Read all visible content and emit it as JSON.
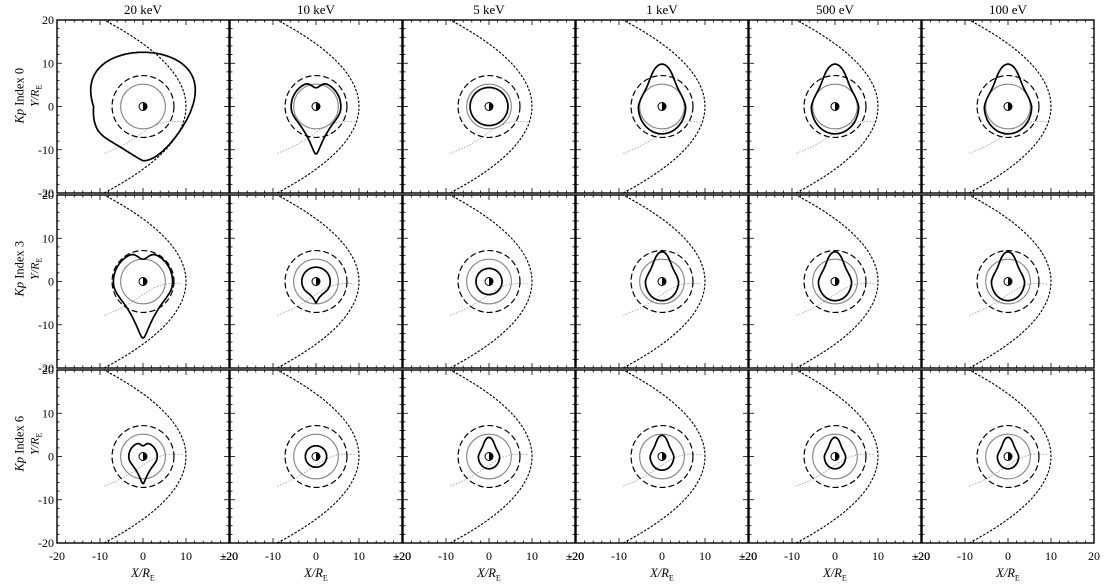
{
  "figure": {
    "columns": [
      "20 keV",
      "10 keV",
      "5 keV",
      "1 keV",
      "500 eV",
      "100 eV"
    ],
    "rows": [
      {
        "kp_prefix": "Kp",
        "kp_text": "Index 0"
      },
      {
        "kp_prefix": "Kp",
        "kp_text": "Index 3"
      },
      {
        "kp_prefix": "Kp",
        "kp_text": "Index 6"
      }
    ],
    "y_axis_label": {
      "var": "Y/R",
      "sub": "E"
    },
    "x_axis_label": {
      "var": "X/R",
      "sub": "E"
    },
    "y_ticks": [
      "20",
      "10",
      "0",
      "-10",
      "-20"
    ],
    "x_ticks_inner": [
      "-20",
      "-10",
      "0",
      "10",
      "±20"
    ],
    "x_ticks_last": [
      "-20",
      "-10",
      "0",
      "10",
      "20"
    ]
  },
  "chart_data": {
    "type": "diagram",
    "description_units": "Earth radii",
    "xlim": [
      -20,
      20
    ],
    "ylim": [
      -20,
      20
    ],
    "panels": [
      {
        "row": 0,
        "col": 0,
        "curve": "teardrop-wide",
        "scale": 1.9
      },
      {
        "row": 0,
        "col": 1,
        "curve": "teardrop-notched",
        "scale": 1.05
      },
      {
        "row": 0,
        "col": 2,
        "curve": "circle",
        "scale": 0.8
      },
      {
        "row": 0,
        "col": 3,
        "curve": "teardrop",
        "scale": 1.0
      },
      {
        "row": 0,
        "col": 4,
        "curve": "teardrop",
        "scale": 1.0
      },
      {
        "row": 0,
        "col": 5,
        "curve": "teardrop",
        "scale": 1.0
      },
      {
        "row": 1,
        "col": 0,
        "curve": "teardrop-notched",
        "scale": 1.25
      },
      {
        "row": 1,
        "col": 1,
        "curve": "circle-tail",
        "scale": 0.6
      },
      {
        "row": 1,
        "col": 2,
        "curve": "circle",
        "scale": 0.55
      },
      {
        "row": 1,
        "col": 3,
        "curve": "teardrop",
        "scale": 0.7
      },
      {
        "row": 1,
        "col": 4,
        "curve": "teardrop",
        "scale": 0.7
      },
      {
        "row": 1,
        "col": 5,
        "curve": "teardrop",
        "scale": 0.7
      },
      {
        "row": 2,
        "col": 0,
        "curve": "teardrop-notched",
        "scale": 0.6
      },
      {
        "row": 2,
        "col": 1,
        "curve": "circle",
        "scale": 0.45
      },
      {
        "row": 2,
        "col": 2,
        "curve": "teardrop",
        "scale": 0.45
      },
      {
        "row": 2,
        "col": 3,
        "curve": "teardrop",
        "scale": 0.5
      },
      {
        "row": 2,
        "col": 4,
        "curve": "teardrop",
        "scale": 0.45
      },
      {
        "row": 2,
        "col": 5,
        "curve": "teardrop",
        "scale": 0.45
      }
    ]
  }
}
